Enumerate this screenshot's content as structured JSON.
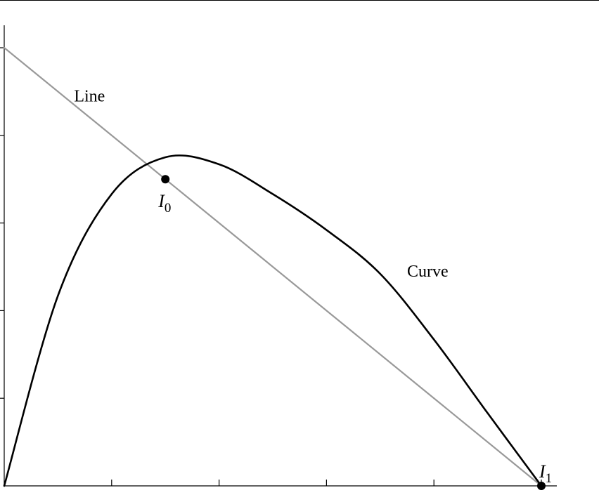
{
  "chart_data": {
    "type": "line",
    "title": "",
    "xlabel": "",
    "ylabel": "",
    "xlim": [
      0,
      5
    ],
    "ylim": [
      0,
      5
    ],
    "x_ticks": [
      0,
      1,
      2,
      3,
      4,
      5
    ],
    "y_ticks": [
      0,
      1,
      2,
      3,
      4,
      5
    ],
    "grid": false,
    "legend": "none",
    "series": [
      {
        "name": "Line",
        "color": "#999999",
        "x": [
          0,
          5
        ],
        "y": [
          5,
          0
        ]
      },
      {
        "name": "Curve",
        "color": "#000000",
        "x": [
          0,
          0.5,
          1,
          1.5,
          2,
          2.5,
          3,
          3.5,
          4,
          4.5,
          5
        ],
        "y": [
          0,
          2.17,
          3.33,
          3.75,
          3.67,
          3.33,
          2.92,
          2.42,
          1.67,
          0.83,
          0
        ]
      }
    ],
    "points": [
      {
        "label": "I",
        "subscript": "0",
        "x": 1.5,
        "y": 3.5
      },
      {
        "label": "I",
        "subscript": "1",
        "x": 5,
        "y": 0
      }
    ],
    "annotations": [
      {
        "text": "Line",
        "x": 0.65,
        "y": 4.45
      },
      {
        "text": "Curve",
        "x": 3.75,
        "y": 2.45
      }
    ]
  }
}
